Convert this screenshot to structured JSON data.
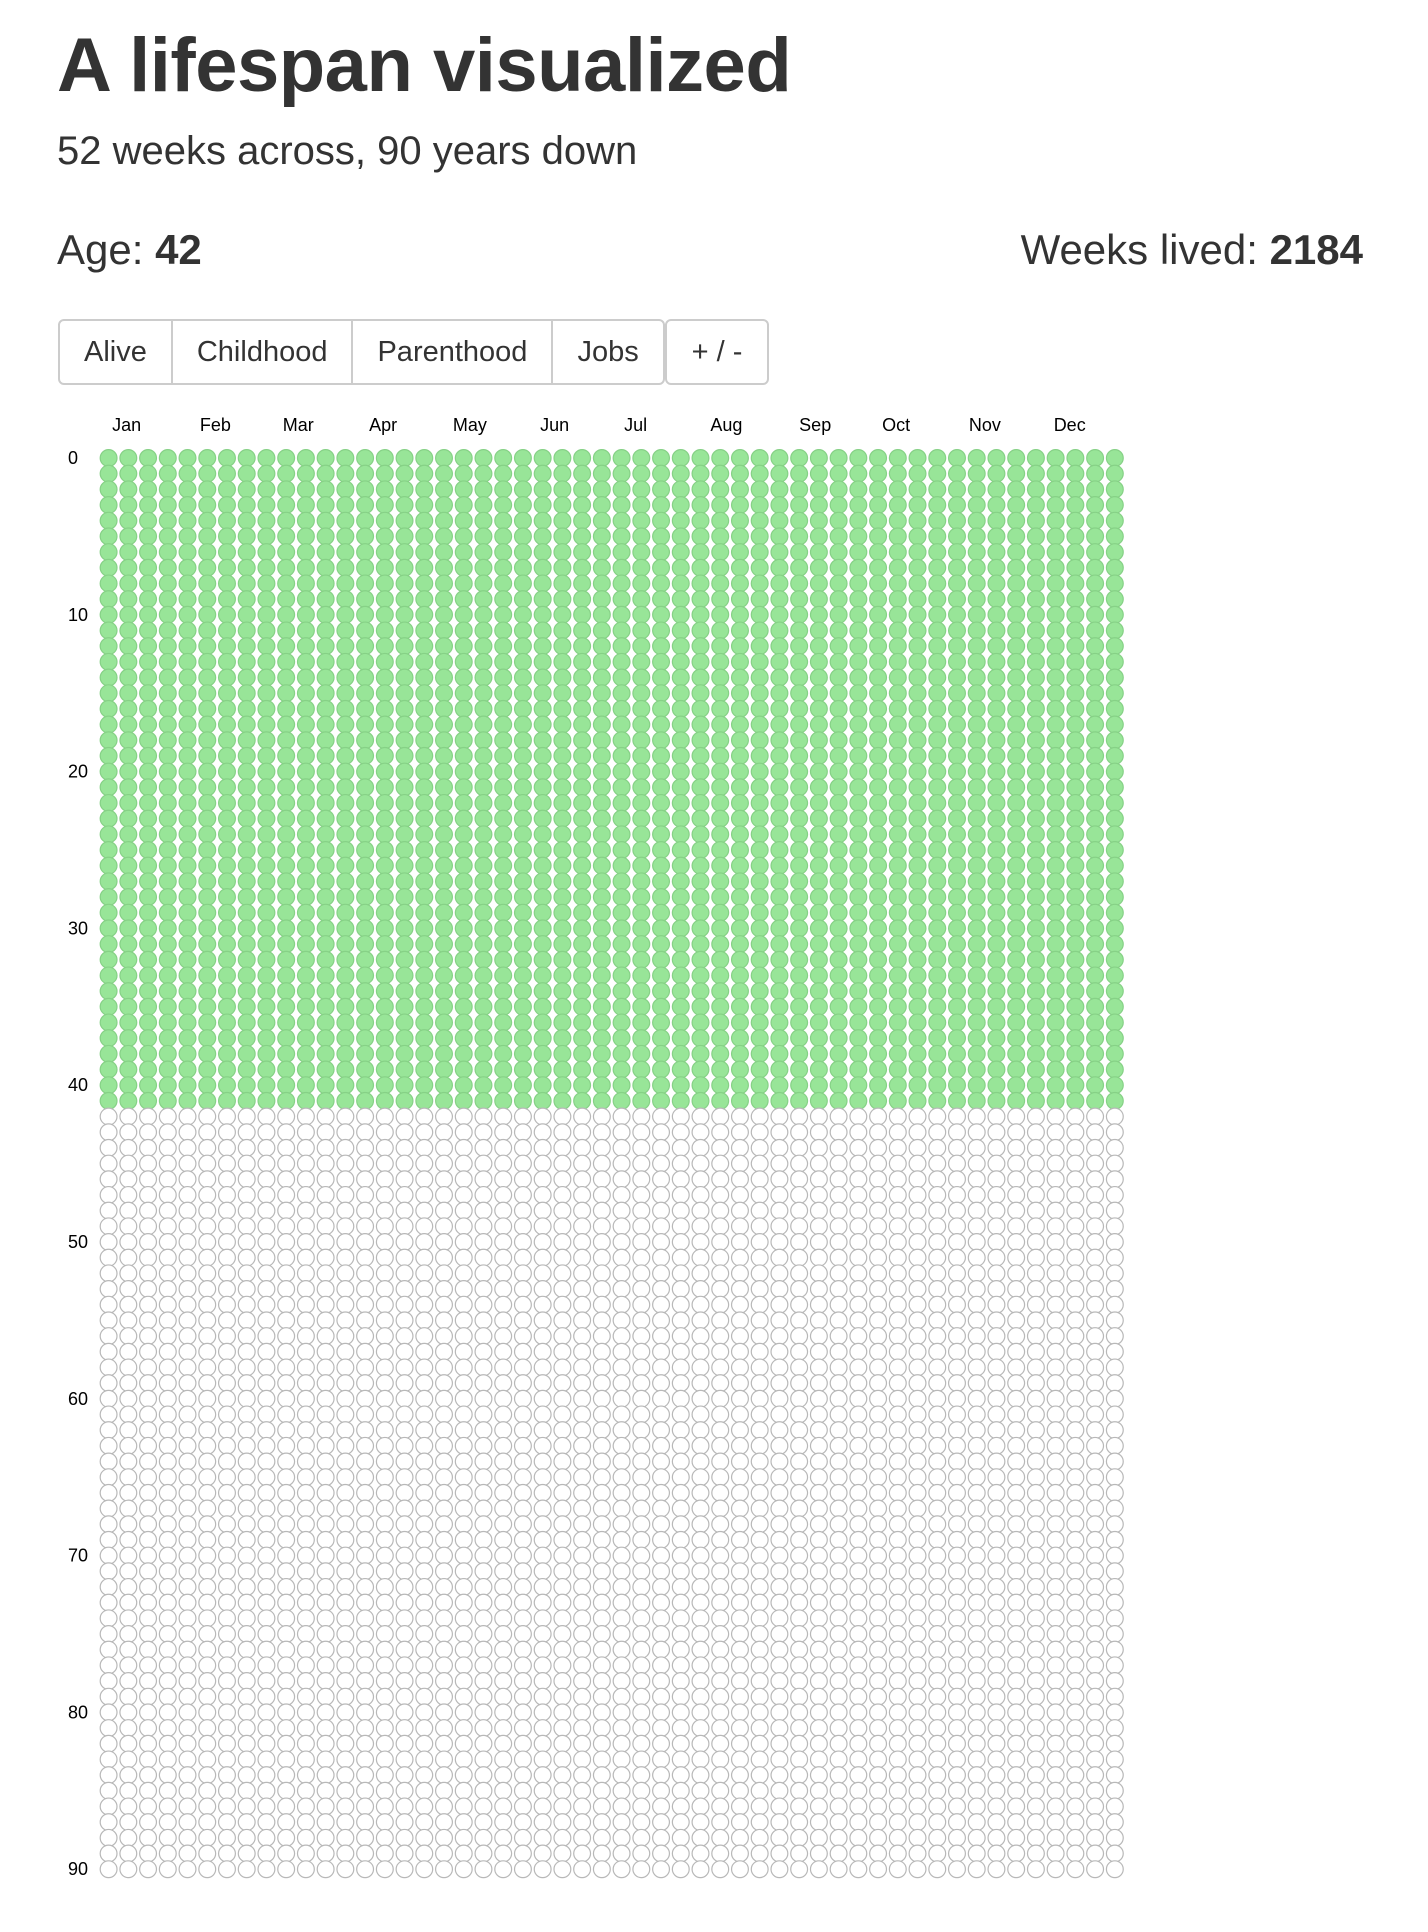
{
  "header": {
    "title": "A lifespan visualized",
    "subtitle": "52 weeks across, 90 years down"
  },
  "stats": {
    "age_label": "Age:",
    "age_value": "42",
    "weeks_label": "Weeks lived:",
    "weeks_value": "2184"
  },
  "toolbar": {
    "buttons": [
      "Alive",
      "Childhood",
      "Parenthood",
      "Jobs"
    ],
    "toggle_label": "+ / -"
  },
  "colors": {
    "lived_fill": "#98e598",
    "lived_stroke": "#86d186",
    "unlived_stroke": "#b8b8b8",
    "unlived_fill": "#ffffff"
  },
  "chart_data": {
    "type": "heatmap",
    "columns": 52,
    "rows": 91,
    "x_tick_labels": [
      {
        "label": "Jan",
        "week": 1
      },
      {
        "label": "Feb",
        "week": 5.5
      },
      {
        "label": "Mar",
        "week": 9.7
      },
      {
        "label": "Apr",
        "week": 14
      },
      {
        "label": "May",
        "week": 18.4
      },
      {
        "label": "Jun",
        "week": 22.7
      },
      {
        "label": "Jul",
        "week": 26.8
      },
      {
        "label": "Aug",
        "week": 31.4
      },
      {
        "label": "Sep",
        "week": 35.9
      },
      {
        "label": "Oct",
        "week": 40
      },
      {
        "label": "Nov",
        "week": 44.5
      },
      {
        "label": "Dec",
        "week": 48.8
      }
    ],
    "y_ticks": [
      0,
      10,
      20,
      30,
      40,
      50,
      60,
      70,
      80,
      90
    ],
    "weeks_lived": 2184
  }
}
